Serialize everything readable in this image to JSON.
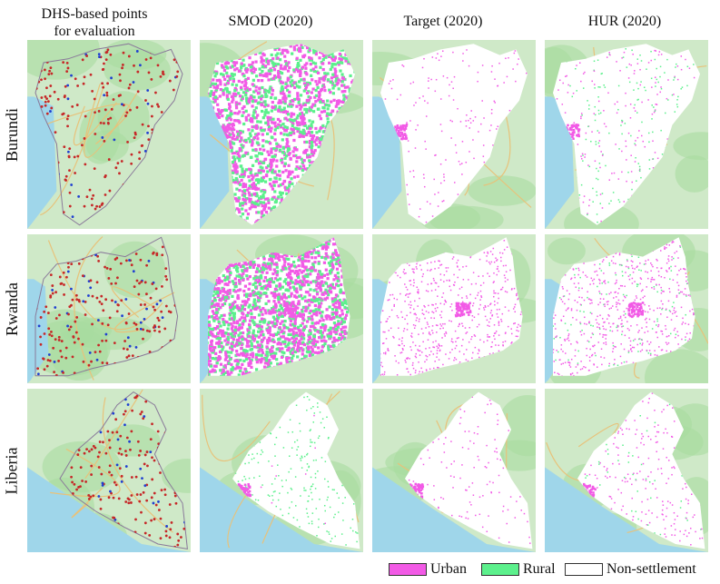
{
  "columns": [
    {
      "title_line1": "DHS-based points",
      "title_line2": "for evaluation"
    },
    {
      "title_line1": "SMOD (2020)",
      "title_line2": ""
    },
    {
      "title_line1": "Target (2020)",
      "title_line2": ""
    },
    {
      "title_line1": "HUR (2020)",
      "title_line2": ""
    }
  ],
  "rows": [
    {
      "label": "Burundi"
    },
    {
      "label": "Rwanda"
    },
    {
      "label": "Liberia"
    }
  ],
  "legend": [
    {
      "label": "Urban",
      "color": "#f25ae6"
    },
    {
      "label": "Rural",
      "color": "#5cf08c"
    },
    {
      "label": "Non-settlement",
      "color": "#ffffff"
    }
  ],
  "colors": {
    "map_land": "#cfe9c8",
    "map_green": "#a9dca0",
    "water": "#9fd6ea",
    "road": "#e8c27a",
    "dhs_red": "#c62828",
    "dhs_blue": "#1f3fd1"
  }
}
